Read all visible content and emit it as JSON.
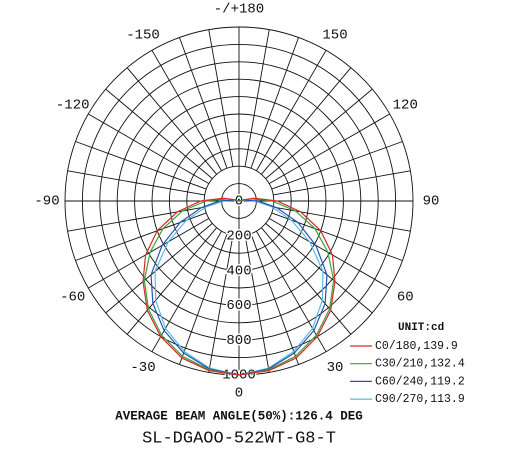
{
  "chart_data": {
    "type": "polar",
    "unit_label": "UNIT:cd",
    "footer": "AVERAGE BEAM ANGLE(50%):126.4 DEG",
    "title": "SL-DGAOO-522WT-G8-T",
    "rlim": [
      0,
      1000
    ],
    "rticks": [
      0,
      200,
      400,
      600,
      800,
      1000
    ],
    "angle_ticks": [
      {
        "value": 180,
        "label": "-/+180"
      },
      150,
      120,
      90,
      60,
      30,
      0,
      -30,
      -60,
      -90,
      -120,
      -150
    ],
    "x": [
      -110,
      -100,
      -90,
      -80,
      -70,
      -60,
      -50,
      -40,
      -30,
      -20,
      -10,
      0,
      10,
      20,
      30,
      40,
      50,
      60,
      70,
      80,
      90,
      100,
      110
    ],
    "series": [
      {
        "name": "C0/180,139.9",
        "color": "#d42a2a",
        "values": [
          15,
          90,
          220,
          360,
          500,
          620,
          720,
          820,
          900,
          960,
          990,
          1000,
          990,
          960,
          900,
          820,
          720,
          620,
          500,
          360,
          220,
          90,
          15
        ]
      },
      {
        "name": "C30/210,132.4",
        "color": "#3aa33a",
        "values": [
          5,
          70,
          190,
          330,
          465,
          590,
          710,
          810,
          890,
          950,
          985,
          1000,
          985,
          950,
          890,
          810,
          710,
          590,
          465,
          330,
          190,
          70,
          5
        ]
      },
      {
        "name": "C60/240,119.2",
        "color": "#2a50b0",
        "values": [
          0,
          30,
          110,
          220,
          360,
          510,
          660,
          770,
          860,
          930,
          980,
          1000,
          980,
          930,
          860,
          770,
          660,
          510,
          360,
          220,
          110,
          30,
          0
        ]
      },
      {
        "name": "C90/270,113.9",
        "color": "#55bde0",
        "values": [
          0,
          25,
          90,
          190,
          320,
          470,
          630,
          745,
          845,
          920,
          975,
          1000,
          975,
          920,
          845,
          745,
          630,
          470,
          320,
          190,
          90,
          25,
          0
        ]
      }
    ]
  }
}
